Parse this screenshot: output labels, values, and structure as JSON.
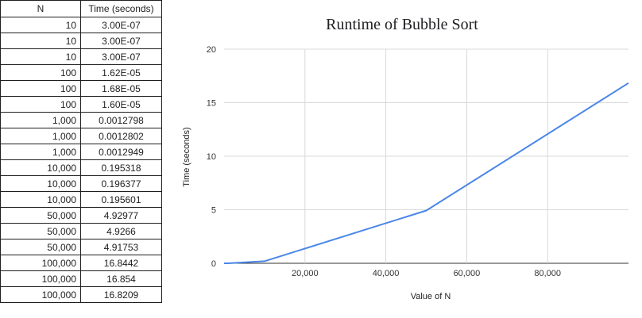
{
  "sheet": {
    "headers": [
      "N",
      "Time (seconds)"
    ],
    "rows": [
      [
        "10",
        "3.00E-07"
      ],
      [
        "10",
        "3.00E-07"
      ],
      [
        "10",
        "3.00E-07"
      ],
      [
        "100",
        "1.62E-05"
      ],
      [
        "100",
        "1.68E-05"
      ],
      [
        "100",
        "1.60E-05"
      ],
      [
        "1,000",
        "0.0012798"
      ],
      [
        "1,000",
        "0.0012802"
      ],
      [
        "1,000",
        "0.0012949"
      ],
      [
        "10,000",
        "0.195318"
      ],
      [
        "10,000",
        "0.196377"
      ],
      [
        "10,000",
        "0.195601"
      ],
      [
        "50,000",
        "4.92977"
      ],
      [
        "50,000",
        "4.9266"
      ],
      [
        "50,000",
        "4.91753"
      ],
      [
        "100,000",
        "16.8442"
      ],
      [
        "100,000",
        "16.854"
      ],
      [
        "100,000",
        "16.8209"
      ]
    ]
  },
  "chart_data": {
    "type": "line",
    "title": "Runtime of Bubble Sort",
    "xlabel": "Value of N",
    "ylabel": "Time (seconds)",
    "x": [
      10,
      100,
      1000,
      10000,
      50000,
      100000
    ],
    "series": [
      {
        "values": [
          3e-07,
          1.63e-05,
          0.001285,
          0.195765,
          4.9246,
          16.8397
        ],
        "color": "#4a86e8"
      }
    ],
    "xlim": [
      0,
      100000
    ],
    "ylim": [
      0,
      20
    ],
    "xticks": [
      20000,
      40000,
      60000,
      80000
    ],
    "xtick_labels": [
      "20,000",
      "40,000",
      "60,000",
      "80,000"
    ],
    "yticks": [
      0,
      5,
      10,
      15,
      20
    ],
    "ytick_labels": [
      "0",
      "5",
      "10",
      "15",
      "20"
    ],
    "grid": true,
    "legend": "none"
  }
}
